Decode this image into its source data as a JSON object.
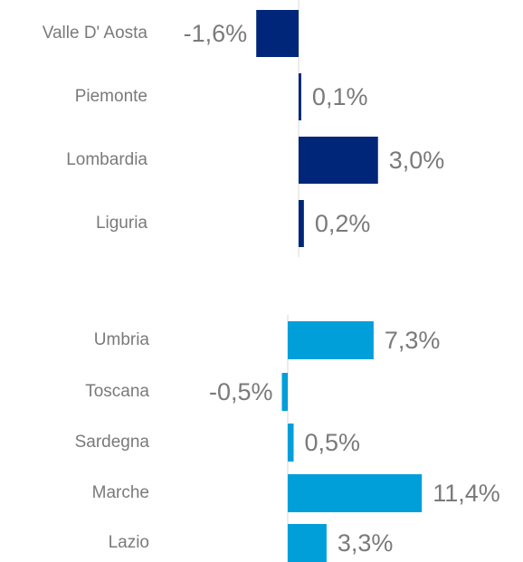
{
  "chart_data": [
    {
      "type": "bar",
      "orientation": "horizontal",
      "categories": [
        "Valle D' Aosta",
        "Piemonte",
        "Lombardia",
        "Liguria"
      ],
      "values": [
        -1.6,
        0.1,
        3.0,
        0.2
      ],
      "value_labels": [
        "-1,6%",
        "0,1%",
        "3,0%",
        "0,2%"
      ],
      "color": "#00267a",
      "xlim": [
        -4,
        4
      ]
    },
    {
      "type": "bar",
      "orientation": "horizontal",
      "categories": [
        "Umbria",
        "Toscana",
        "Sardegna",
        "Marche",
        "Lazio"
      ],
      "values": [
        7.3,
        -0.5,
        0.5,
        11.4,
        3.3
      ],
      "value_labels": [
        "7,3%",
        "-0,5%",
        "0,5%",
        "11,4%",
        "3,3%"
      ],
      "color": "#009fda",
      "xlim": [
        -4,
        12
      ]
    }
  ]
}
